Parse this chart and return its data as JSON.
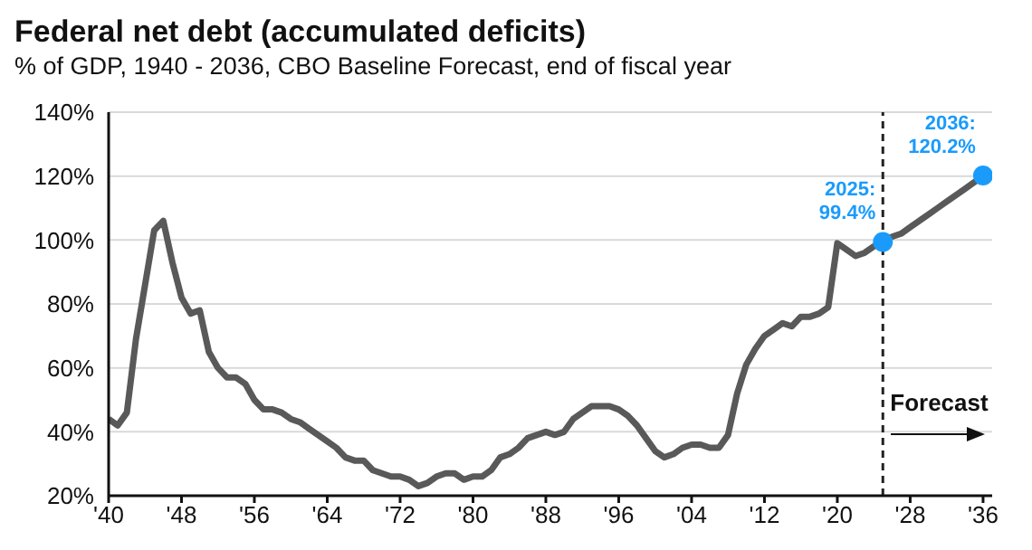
{
  "chart_data": {
    "type": "line",
    "title": "Federal net debt (accumulated deficits)",
    "subtitle": "% of GDP, 1940 - 2036, CBO Baseline Forecast, end of fiscal year",
    "x": [
      1940,
      1941,
      1942,
      1943,
      1944,
      1945,
      1946,
      1947,
      1948,
      1949,
      1950,
      1951,
      1952,
      1953,
      1954,
      1955,
      1956,
      1957,
      1958,
      1959,
      1960,
      1961,
      1962,
      1963,
      1964,
      1965,
      1966,
      1967,
      1968,
      1969,
      1970,
      1971,
      1972,
      1973,
      1974,
      1975,
      1976,
      1977,
      1978,
      1979,
      1980,
      1981,
      1982,
      1983,
      1984,
      1985,
      1986,
      1987,
      1988,
      1989,
      1990,
      1991,
      1992,
      1993,
      1994,
      1995,
      1996,
      1997,
      1998,
      1999,
      2000,
      2001,
      2002,
      2003,
      2004,
      2005,
      2006,
      2007,
      2008,
      2009,
      2010,
      2011,
      2012,
      2013,
      2014,
      2015,
      2016,
      2017,
      2018,
      2019,
      2020,
      2021,
      2022,
      2023,
      2024,
      2025,
      2026,
      2027,
      2028,
      2029,
      2030,
      2031,
      2032,
      2033,
      2034,
      2035,
      2036
    ],
    "series": [
      {
        "color": "#595959",
        "values": [
          44,
          42,
          46,
          69,
          86,
          103,
          106,
          93,
          82,
          77,
          78,
          65,
          60,
          57,
          57,
          55,
          50,
          47,
          47,
          46,
          44,
          43,
          41,
          39,
          37,
          35,
          32,
          31,
          31,
          28,
          27,
          26,
          26,
          25,
          23,
          24,
          26,
          27,
          27,
          25,
          26,
          26,
          28,
          32,
          33,
          35,
          38,
          39,
          40,
          39,
          40,
          44,
          46,
          48,
          48,
          48,
          47,
          45,
          42,
          38,
          34,
          32,
          33,
          35,
          36,
          36,
          35,
          35,
          39,
          52,
          61,
          66,
          70,
          72,
          74,
          73,
          76,
          76,
          77,
          79,
          99,
          97,
          95,
          96,
          98,
          99.4,
          101,
          102,
          104,
          106,
          108,
          110,
          112,
          114,
          116,
          118,
          120.2
        ]
      },
      {
        "type": "scatter",
        "color": "#1a9bfc",
        "x": [
          2025,
          2036
        ],
        "values": [
          99.4,
          120.2
        ],
        "value_labels": [
          "2025:\n99.4%",
          "2036:\n120.2%"
        ]
      }
    ],
    "xlim": [
      1940,
      2037
    ],
    "xticks": [
      {
        "value": 1940,
        "label": "'40"
      },
      {
        "value": 1948,
        "label": "'48"
      },
      {
        "value": 1956,
        "label": "'56"
      },
      {
        "value": 1964,
        "label": "'64"
      },
      {
        "value": 1972,
        "label": "'72"
      },
      {
        "value": 1980,
        "label": "'80"
      },
      {
        "value": 1988,
        "label": "'88"
      },
      {
        "value": 1996,
        "label": "'96"
      },
      {
        "value": 2004,
        "label": "'04"
      },
      {
        "value": 2012,
        "label": "'12"
      },
      {
        "value": 2020,
        "label": "'20"
      },
      {
        "value": 2028,
        "label": "'28"
      },
      {
        "value": 2036,
        "label": "'36"
      }
    ],
    "ylim": [
      20,
      140
    ],
    "yticks": [
      {
        "value": 20,
        "label": "20%"
      },
      {
        "value": 40,
        "label": "40%"
      },
      {
        "value": 60,
        "label": "60%"
      },
      {
        "value": 80,
        "label": "80%"
      },
      {
        "value": 100,
        "label": "100%"
      },
      {
        "value": 120,
        "label": "120%"
      },
      {
        "value": 140,
        "label": "140%"
      }
    ],
    "grid": "y",
    "line_style": "solid",
    "ref_lines": [
      {
        "axis": "x",
        "value": 2025,
        "color": "#222222",
        "line_style": "dashed"
      }
    ],
    "annotations": [
      "Forecast"
    ]
  }
}
